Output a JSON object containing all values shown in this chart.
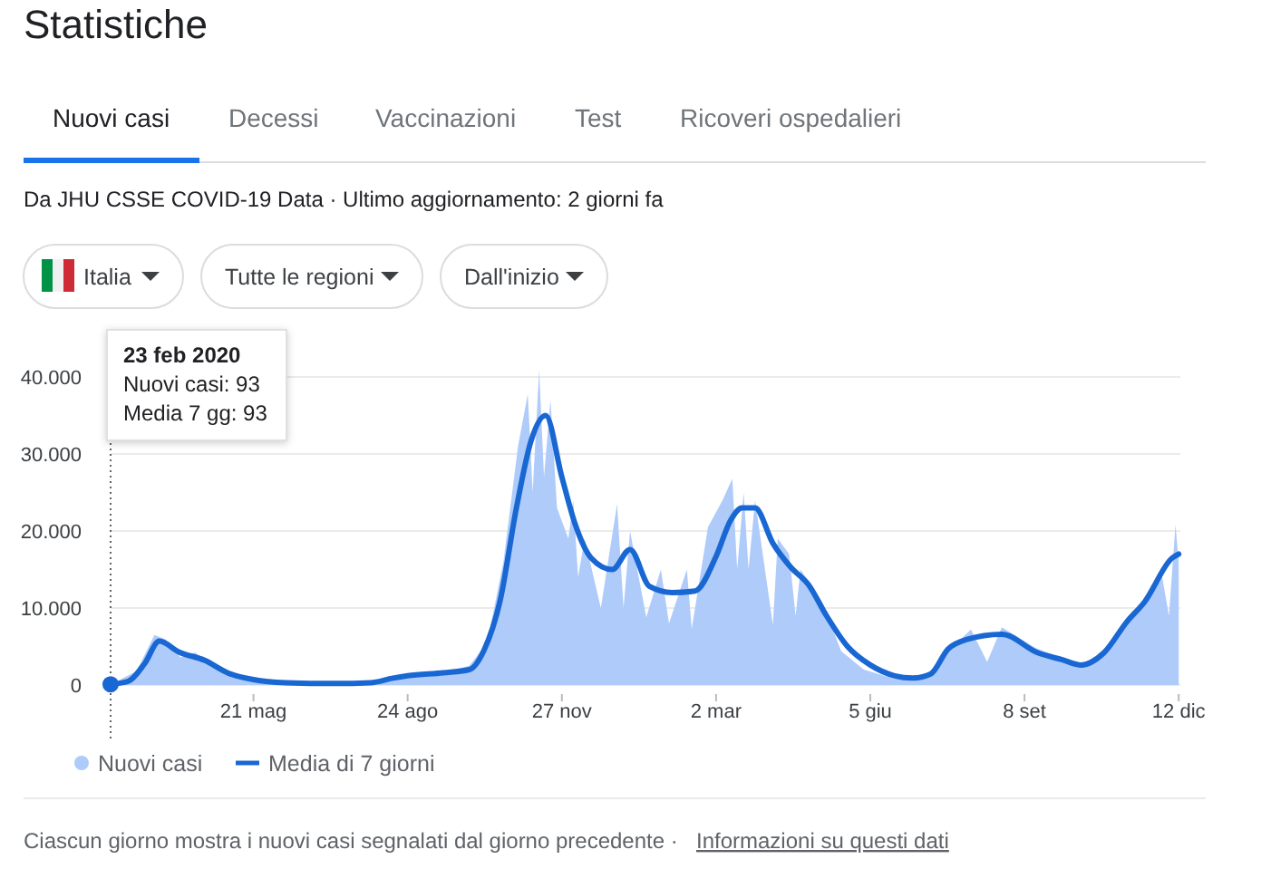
{
  "chart_data": {
    "type": "area",
    "title": "Statistiche",
    "subtitle": "Da JHU CSSE COVID-19 Data · Ultimo aggiornamento: 2 giorni fa",
    "annotations": [
      "Nuovi casi",
      "Decessi",
      "Vaccinazioni",
      "Test",
      "Ricoveri ospedalieri",
      "Italia",
      "Tutte le regioni",
      "Dall'inizio",
      "23 feb 2020\nNuovi casi: 93\nMedia 7 gg: 93",
      "Ciascun giorno mostra i nuovi casi segnalati dal giorno precedente ·",
      "Informazioni su questi dati"
    ],
    "xlim": [
      "2020-02-23",
      "2021-12-13"
    ],
    "xticks": [
      {
        "value": "2020-05-21",
        "label": "21 mag"
      },
      {
        "value": "2020-08-24",
        "label": "24 ago"
      },
      {
        "value": "2020-11-27",
        "label": "27 nov"
      },
      {
        "value": "2021-03-02",
        "label": "2 mar"
      },
      {
        "value": "2021-06-05",
        "label": "5 giu"
      },
      {
        "value": "2021-09-08",
        "label": "8 set"
      },
      {
        "value": "2021-12-12",
        "label": "12 dic"
      }
    ],
    "ylim": [
      0,
      42000
    ],
    "yticks": [
      0,
      {
        "value": 10000,
        "label": "10.000"
      },
      {
        "value": 20000,
        "label": "20.000"
      },
      {
        "value": 30000,
        "label": "30.000"
      },
      {
        "value": 40000,
        "label": "40.000"
      }
    ],
    "grid": "y",
    "legend": "bottom",
    "marker": "none",
    "series": [
      {
        "name": "Nuovi casi",
        "color": "#aecbfa",
        "x": [
          "2020-02-23",
          "2020-03-10",
          "2020-03-21",
          "2020-03-28",
          "2020-04-06",
          "2020-04-15",
          "2020-05-01",
          "2020-05-21",
          "2020-06-15",
          "2020-07-15",
          "2020-08-10",
          "2020-08-24",
          "2020-09-15",
          "2020-10-01",
          "2020-10-12",
          "2020-10-22",
          "2020-10-31",
          "2020-11-06",
          "2020-11-09",
          "2020-11-13",
          "2020-11-16",
          "2020-11-20",
          "2020-11-24",
          "2020-12-01",
          "2020-12-04",
          "2020-12-07",
          "2020-12-11",
          "2020-12-21",
          "2020-12-31",
          "2021-01-04",
          "2021-01-08",
          "2021-01-18",
          "2021-01-27",
          "2021-02-01",
          "2021-02-12",
          "2021-02-15",
          "2021-02-25",
          "2021-03-06",
          "2021-03-12",
          "2021-03-15",
          "2021-03-19",
          "2021-03-22",
          "2021-03-26",
          "2021-04-06",
          "2021-04-09",
          "2021-04-16",
          "2021-04-20",
          "2021-04-23",
          "2021-05-07",
          "2021-05-18",
          "2021-06-01",
          "2021-06-20",
          "2021-07-10",
          "2021-07-27",
          "2021-08-06",
          "2021-08-16",
          "2021-08-25",
          "2021-09-15",
          "2021-10-01",
          "2021-10-14",
          "2021-10-28",
          "2021-11-12",
          "2021-11-22",
          "2021-12-01",
          "2021-12-06",
          "2021-12-10",
          "2021-12-12"
        ],
        "values": [
          93,
          1800,
          6500,
          5900,
          3600,
          4200,
          1800,
          650,
          300,
          200,
          500,
          1200,
          1600,
          2500,
          5500,
          16000,
          31000,
          37800,
          25000,
          40900,
          27000,
          37000,
          23000,
          19000,
          24000,
          14000,
          19000,
          10000,
          23500,
          10000,
          20000,
          8800,
          15000,
          8000,
          15000,
          7300,
          20500,
          24000,
          26800,
          15000,
          25000,
          15000,
          24000,
          7800,
          19000,
          17000,
          9000,
          15000,
          10500,
          4400,
          2000,
          800,
          1400,
          5200,
          7200,
          3000,
          7500,
          4800,
          3500,
          2800,
          4500,
          8500,
          11500,
          15000,
          9000,
          20800,
          16000
        ]
      },
      {
        "name": "Media di 7 giorni",
        "type": "line",
        "color": "#1967d2",
        "line_style": "solid",
        "x": [
          "2020-02-23",
          "2020-03-05",
          "2020-03-15",
          "2020-03-24",
          "2020-04-05",
          "2020-04-21",
          "2020-05-05",
          "2020-05-21",
          "2020-06-10",
          "2020-07-10",
          "2020-08-01",
          "2020-08-15",
          "2020-08-24",
          "2020-09-15",
          "2020-10-01",
          "2020-10-10",
          "2020-10-20",
          "2020-10-30",
          "2020-11-08",
          "2020-11-17",
          "2020-11-27",
          "2020-12-05",
          "2020-12-15",
          "2020-12-28",
          "2021-01-08",
          "2021-01-20",
          "2021-02-03",
          "2021-02-17",
          "2021-03-02",
          "2021-03-11",
          "2021-03-18",
          "2021-03-26",
          "2021-04-06",
          "2021-04-17",
          "2021-04-28",
          "2021-05-09",
          "2021-05-22",
          "2021-06-05",
          "2021-06-20",
          "2021-07-01",
          "2021-07-12",
          "2021-07-23",
          "2021-08-03",
          "2021-08-25",
          "2021-09-16",
          "2021-10-01",
          "2021-10-13",
          "2021-10-27",
          "2021-11-10",
          "2021-11-21",
          "2021-12-08",
          "2021-12-12"
        ],
        "values": [
          93,
          500,
          2800,
          5700,
          4300,
          3200,
          1600,
          700,
          300,
          200,
          300,
          900,
          1200,
          1600,
          2000,
          4500,
          11000,
          23000,
          31700,
          35000,
          27000,
          21000,
          16500,
          15000,
          17600,
          12800,
          12000,
          12200,
          16700,
          21400,
          23000,
          23000,
          18400,
          15300,
          13000,
          9000,
          5000,
          2600,
          1200,
          900,
          1400,
          4700,
          5900,
          6600,
          4200,
          3300,
          2600,
          4200,
          8200,
          10800,
          16500,
          17000
        ]
      }
    ]
  }
}
